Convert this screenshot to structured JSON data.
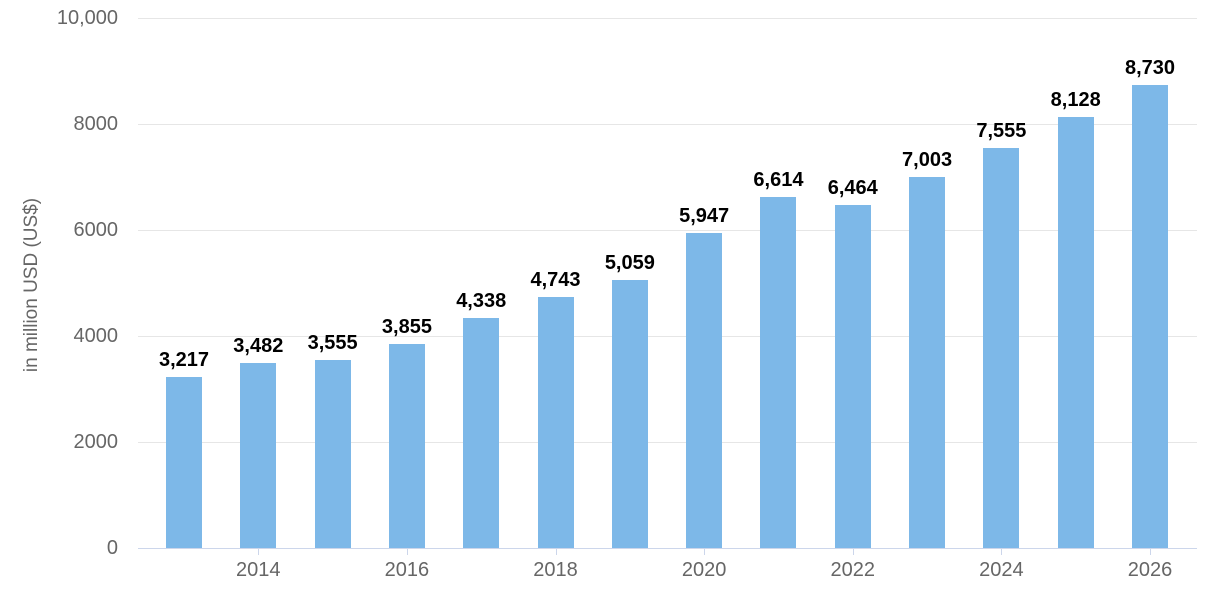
{
  "chart_data": {
    "type": "bar",
    "title": "",
    "ylabel": "in million USD (US$)",
    "xlabel": "",
    "categories": [
      "2013",
      "2014",
      "2015",
      "2016",
      "2017",
      "2018",
      "2019",
      "2020",
      "2021",
      "2022",
      "2023",
      "2024",
      "2025",
      "2026"
    ],
    "values": [
      3217,
      3482,
      3555,
      3855,
      4338,
      4743,
      5059,
      5947,
      6614,
      6464,
      7003,
      7555,
      8128,
      8730
    ],
    "value_labels": [
      "3,217",
      "3,482",
      "3,555",
      "3,855",
      "4,338",
      "4,743",
      "5,059",
      "5,947",
      "6,614",
      "6,464",
      "7,003",
      "7,555",
      "8,128",
      "8,730"
    ],
    "ylim": [
      0,
      10000
    ],
    "yticks": [
      0,
      2000,
      4000,
      6000,
      8000,
      10000
    ],
    "ytick_labels": [
      "0",
      "2000",
      "4000",
      "6000",
      "8000",
      "10,000"
    ],
    "xtick_labels": [
      "2014",
      "2016",
      "2018",
      "2020",
      "2022",
      "2024",
      "2026"
    ],
    "grid": true,
    "legend": "none",
    "data_labels": true,
    "colors": {
      "bar": "#7db8e8",
      "grid": "#e6e6e6",
      "axis": "#ccd6eb",
      "tick_text": "#666666",
      "data_label": "#000000",
      "background": "#ffffff"
    }
  }
}
